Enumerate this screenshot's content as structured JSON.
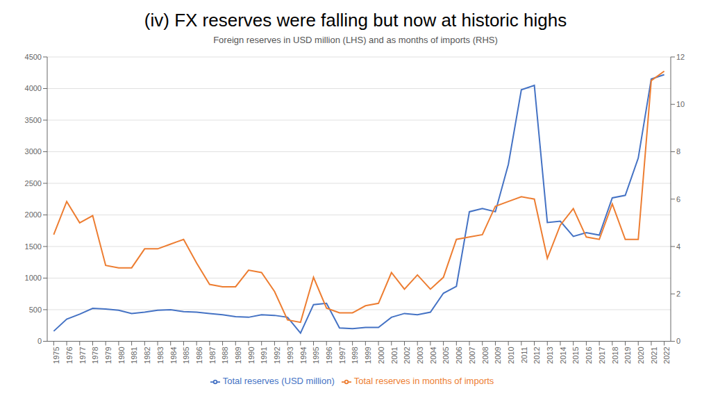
{
  "chart_data": {
    "type": "line",
    "title": "(iv) FX reserves were falling but now at historic highs",
    "subtitle": "Foreign reserves in USD million (LHS) and as months of imports (RHS)",
    "x": [
      1975,
      1976,
      1977,
      1978,
      1979,
      1980,
      1981,
      1982,
      1983,
      1984,
      1985,
      1986,
      1987,
      1988,
      1989,
      1990,
      1991,
      1992,
      1993,
      1994,
      1995,
      1996,
      1997,
      1998,
      1999,
      2000,
      2001,
      2002,
      2003,
      2004,
      2005,
      2006,
      2007,
      2008,
      2009,
      2010,
      2011,
      2012,
      2013,
      2014,
      2015,
      2016,
      2017,
      2018,
      2019,
      2020,
      2021,
      2022
    ],
    "series": [
      {
        "name": "Total reserves (USD million)",
        "color": "#4472C4",
        "axis": "y",
        "values": [
          160,
          350,
          430,
          520,
          510,
          490,
          440,
          460,
          490,
          500,
          470,
          460,
          440,
          420,
          390,
          380,
          420,
          410,
          380,
          130,
          580,
          600,
          210,
          200,
          220,
          220,
          380,
          440,
          420,
          460,
          760,
          870,
          2050,
          2100,
          2050,
          2800,
          3980,
          4050,
          1880,
          1900,
          1660,
          1720,
          1680,
          2270,
          2310,
          2900,
          4150,
          4220
        ]
      },
      {
        "name": "Total reserves in months of imports",
        "color": "#ED7D31",
        "axis": "y2",
        "values": [
          4.5,
          5.9,
          5.0,
          5.3,
          3.2,
          3.1,
          3.1,
          3.9,
          3.9,
          4.1,
          4.3,
          3.3,
          2.4,
          2.3,
          2.3,
          3.0,
          2.9,
          2.1,
          0.9,
          0.8,
          2.7,
          1.4,
          1.2,
          1.2,
          1.5,
          1.6,
          2.9,
          2.2,
          2.8,
          2.2,
          2.7,
          4.3,
          4.4,
          4.5,
          5.7,
          5.9,
          6.1,
          6.0,
          3.5,
          4.9,
          5.6,
          4.4,
          4.3,
          5.8,
          4.3,
          4.3,
          11.0,
          11.4
        ]
      }
    ],
    "xlim": [
      1974.5,
      2022.5
    ],
    "xticks": [
      1975,
      1976,
      1977,
      1978,
      1979,
      1980,
      1981,
      1982,
      1983,
      1984,
      1985,
      1986,
      1987,
      1988,
      1989,
      1990,
      1991,
      1992,
      1993,
      1994,
      1995,
      1996,
      1997,
      1998,
      1999,
      2000,
      2001,
      2002,
      2003,
      2004,
      2005,
      2006,
      2007,
      2008,
      2009,
      2010,
      2011,
      2012,
      2013,
      2014,
      2015,
      2016,
      2017,
      2018,
      2019,
      2020,
      2021,
      2022
    ],
    "ylim": [
      0,
      4500
    ],
    "yticks": [
      0,
      500,
      1000,
      1500,
      2000,
      2500,
      3000,
      3500,
      4000,
      4500
    ],
    "y2lim": [
      0,
      12
    ],
    "y2ticks": [
      0,
      2,
      4,
      6,
      8,
      10,
      12
    ],
    "grid": "y",
    "legend": "bottom"
  }
}
